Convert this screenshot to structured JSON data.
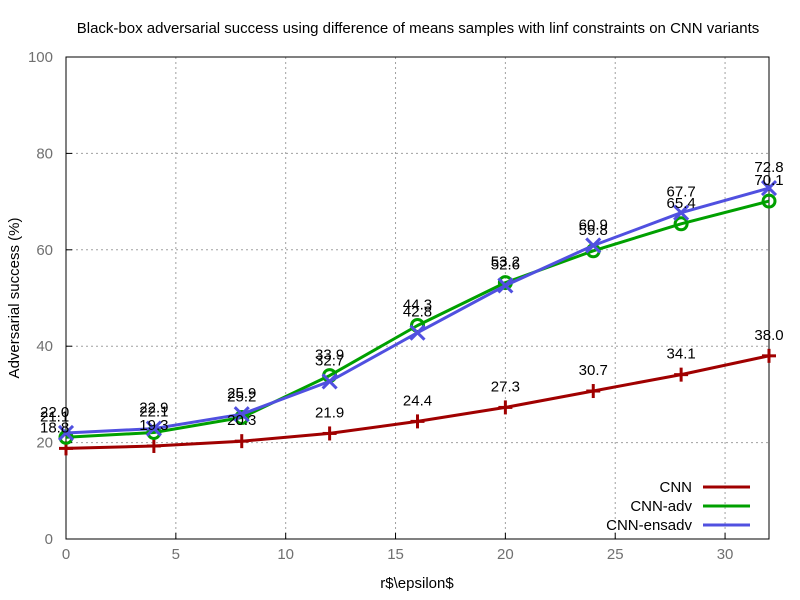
{
  "chart_data": {
    "type": "line",
    "title": "Black-box adversarial success using difference of means samples with linf constraints on CNN variants",
    "xlabel": "r$\\epsilon$",
    "ylabel": "Adversarial success (%)",
    "xlim": [
      0,
      32
    ],
    "ylim": [
      0,
      100
    ],
    "xticks": [
      "0",
      "5",
      "10",
      "15",
      "20",
      "25",
      "30"
    ],
    "yticks": [
      "0",
      "20",
      "40",
      "60",
      "80",
      "100"
    ],
    "grid": true,
    "legend_position": "bottom-right",
    "x": [
      0,
      4,
      8,
      12,
      16,
      20,
      24,
      28,
      32
    ],
    "series": [
      {
        "name": "CNN",
        "color": "#a00000",
        "marker": "plus",
        "values": [
          18.8,
          19.3,
          20.3,
          21.9,
          24.4,
          27.3,
          30.7,
          34.1,
          38.0
        ],
        "labels": [
          "18.8",
          "19.3",
          "20.3",
          "21.9",
          "24.4",
          "27.3",
          "30.7",
          "34.1",
          "38.0"
        ]
      },
      {
        "name": "CNN-adv",
        "color": "#00a000",
        "marker": "circle",
        "values": [
          21.1,
          22.1,
          25.2,
          33.9,
          44.3,
          53.2,
          59.8,
          65.4,
          70.1
        ],
        "labels": [
          "21.1",
          "22.1",
          "25.2",
          "33.9",
          "44.3",
          "53.2",
          "59.8",
          "65.4",
          "70.1"
        ]
      },
      {
        "name": "CNN-ensadv",
        "color": "#5050e0",
        "marker": "x",
        "values": [
          22.0,
          22.9,
          25.9,
          32.7,
          42.8,
          52.6,
          60.9,
          67.7,
          72.8
        ],
        "labels": [
          "22.0",
          "22.9",
          "25.9",
          "32.7",
          "42.8",
          "52.6",
          "60.9",
          "67.7",
          "72.8"
        ]
      }
    ]
  }
}
